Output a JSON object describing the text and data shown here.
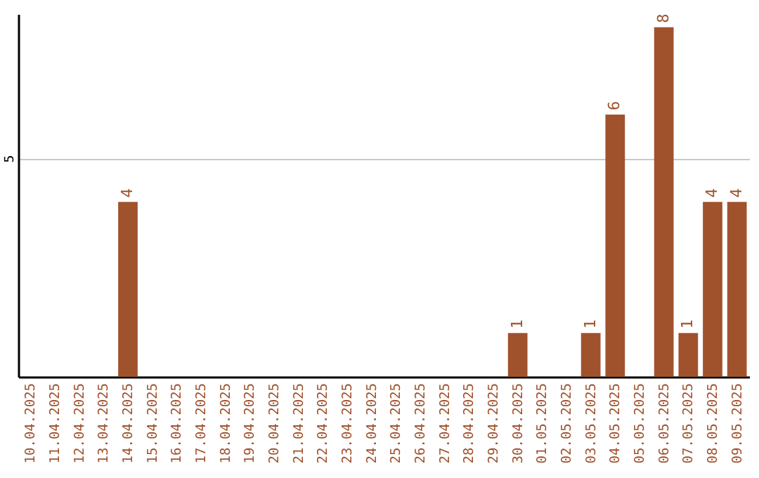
{
  "chart_data": {
    "type": "bar",
    "categories": [
      "10.04.2025",
      "11.04.2025",
      "12.04.2025",
      "13.04.2025",
      "14.04.2025",
      "15.04.2025",
      "16.04.2025",
      "17.04.2025",
      "18.04.2025",
      "19.04.2025",
      "20.04.2025",
      "21.04.2025",
      "22.04.2025",
      "23.04.2025",
      "24.04.2025",
      "25.04.2025",
      "26.04.2025",
      "27.04.2025",
      "28.04.2025",
      "29.04.2025",
      "30.04.2025",
      "01.05.2025",
      "02.05.2025",
      "03.05.2025",
      "04.05.2025",
      "05.05.2025",
      "06.05.2025",
      "07.05.2025",
      "08.05.2025",
      "09.05.2025"
    ],
    "values": [
      0,
      0,
      0,
      0,
      4,
      0,
      0,
      0,
      0,
      0,
      0,
      0,
      0,
      0,
      0,
      0,
      0,
      0,
      0,
      0,
      1,
      0,
      0,
      1,
      6,
      0,
      8,
      1,
      4,
      4
    ],
    "value_labels": [
      null,
      null,
      null,
      null,
      "4",
      null,
      null,
      null,
      null,
      null,
      null,
      null,
      null,
      null,
      null,
      null,
      null,
      null,
      null,
      null,
      "1",
      null,
      null,
      "1",
      "6",
      null,
      "8",
      "1",
      "4",
      "4"
    ],
    "color": "#a0522d",
    "ylim": [
      0,
      8.3
    ],
    "yticks": [
      5
    ],
    "grid": "y"
  }
}
